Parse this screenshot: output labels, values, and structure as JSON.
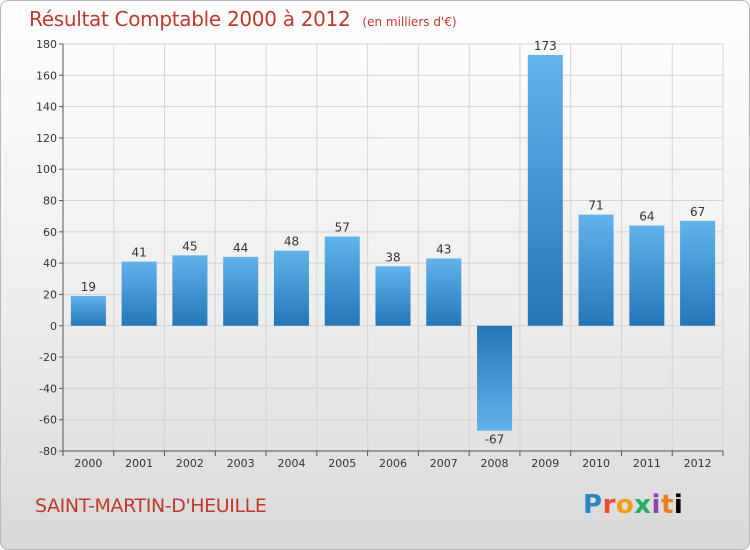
{
  "chart_data": {
    "type": "bar",
    "title": "Résultat Comptable 2000 à 2012",
    "subtitle": "(en milliers d'€)",
    "categories": [
      "2000",
      "2001",
      "2002",
      "2003",
      "2004",
      "2005",
      "2006",
      "2007",
      "2008",
      "2009",
      "2010",
      "2011",
      "2012"
    ],
    "values": [
      19,
      41,
      45,
      44,
      48,
      57,
      38,
      43,
      -67,
      173,
      71,
      64,
      67
    ],
    "ylim": [
      -80,
      180
    ],
    "yticks": [
      -80,
      -60,
      -40,
      -20,
      0,
      20,
      40,
      60,
      80,
      100,
      120,
      140,
      160,
      180
    ],
    "grid": true,
    "legend": "none",
    "bar_color": "#3f97d8",
    "bar_color_light": "#62b3ec",
    "bar_color_dark": "#2476b7"
  },
  "footer": {
    "commune": "SAINT-MARTIN-D'HEUILLE",
    "logo_text": "Proxiti",
    "logo_letters": [
      "P",
      "r",
      "o",
      "x",
      "i",
      "t",
      "i"
    ]
  }
}
